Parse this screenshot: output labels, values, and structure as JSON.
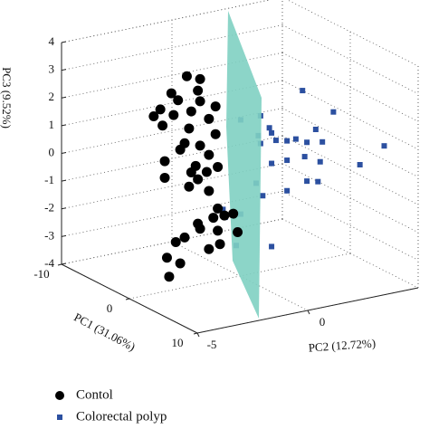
{
  "chart_data": {
    "type": "scatter3d",
    "x_label": "PC1 (31.06%)",
    "y_label": "PC2 (12.72%)",
    "z_label": "PC3 (9.52%)",
    "xlim": [
      -10,
      10
    ],
    "xticks": [
      -10,
      0,
      10
    ],
    "ylim": [
      -5,
      5
    ],
    "yticks": [
      -5,
      0
    ],
    "zlim": [
      -4,
      4
    ],
    "zticks": [
      -4,
      -3,
      -2,
      -1,
      0,
      1,
      2,
      3,
      4
    ],
    "grid": true,
    "legend": "bottom-left",
    "series": [
      {
        "name": "Colorectal polyp",
        "color": "#2c50a0",
        "marker": "square",
        "x": [
          5,
          5,
          5,
          5,
          5,
          5,
          5,
          5,
          5,
          5,
          5,
          5,
          5,
          5,
          5,
          5,
          5,
          5,
          5,
          5,
          5,
          5,
          5,
          5,
          5,
          5,
          5,
          5,
          5,
          5,
          5
        ],
        "y": [
          -1.5,
          -0.6,
          -0.2,
          -0.7,
          -0.1,
          1.3,
          2.7,
          1.9,
          0.1,
          0.6,
          1.0,
          1.5,
          2.2,
          -0.6,
          5.0,
          -0.1,
          0.6,
          1.4,
          2.1,
          3.9,
          -0.8,
          1.5,
          2.0,
          0.6,
          -0.5,
          -2.3,
          -1.5,
          -2.2,
          -1.7,
          -0.1,
          -1.7
        ],
        "z": [
          2.5,
          2.5,
          2.0,
          1.8,
          1.8,
          3.1,
          2.1,
          1.6,
          1.5,
          1.4,
          1.4,
          1.2,
          1.1,
          1.5,
          0.5,
          0.7,
          0.7,
          0.7,
          0.4,
          0.0,
          0.1,
          -0.2,
          -0.3,
          -0.4,
          -0.4,
          -0.6,
          -0.9,
          -0.9,
          -1.5,
          -2.3,
          -2.0
        ]
      },
      {
        "name": "Contol",
        "color": "#000000",
        "marker": "circle",
        "x": [
          0,
          0,
          0,
          0,
          0,
          0,
          0,
          0,
          0,
          0,
          0,
          0,
          0,
          0,
          0,
          0,
          0,
          0,
          0,
          0,
          0,
          0,
          0,
          0,
          0,
          0,
          0,
          0,
          0,
          0,
          0,
          0,
          0,
          0,
          0,
          0,
          0,
          0,
          0,
          0,
          0,
          0,
          0
        ],
        "y": [
          -2.4,
          -1.8,
          -3.1,
          -1.9,
          -1.8,
          -2.8,
          -1.1,
          -3.6,
          -2.2,
          -3.9,
          -3.0,
          -1.4,
          -3.5,
          -2.3,
          -1.1,
          -2.5,
          -1.8,
          -2.7,
          -1.4,
          -3.4,
          -2.0,
          -1.0,
          -1.5,
          -2.2,
          -3.4,
          -1.9,
          -2.3,
          -1.4,
          -1.0,
          -0.7,
          -1.2,
          -0.3,
          -1.9,
          -2.5,
          -1.8,
          -1.0,
          -2.9,
          -0.9,
          -0.1,
          -1.4,
          -3.3,
          -2.7,
          -3.2
        ],
        "z": [
          3.6,
          3.4,
          3.1,
          3.0,
          2.6,
          2.8,
          2.3,
          2.6,
          2.3,
          2.4,
          2.3,
          1.9,
          2.0,
          1.7,
          1.3,
          1.2,
          1.0,
          1.0,
          0.6,
          0.7,
          0.3,
          0.1,
          0.0,
          0.1,
          0.1,
          -0.2,
          -0.4,
          -0.7,
          -1.4,
          -1.7,
          -1.7,
          -1.7,
          -1.8,
          -2.2,
          -2.0,
          -2.2,
          -2.3,
          -2.7,
          -2.4,
          -2.8,
          -2.8,
          -3.1,
          -3.5
        ]
      }
    ]
  }
}
